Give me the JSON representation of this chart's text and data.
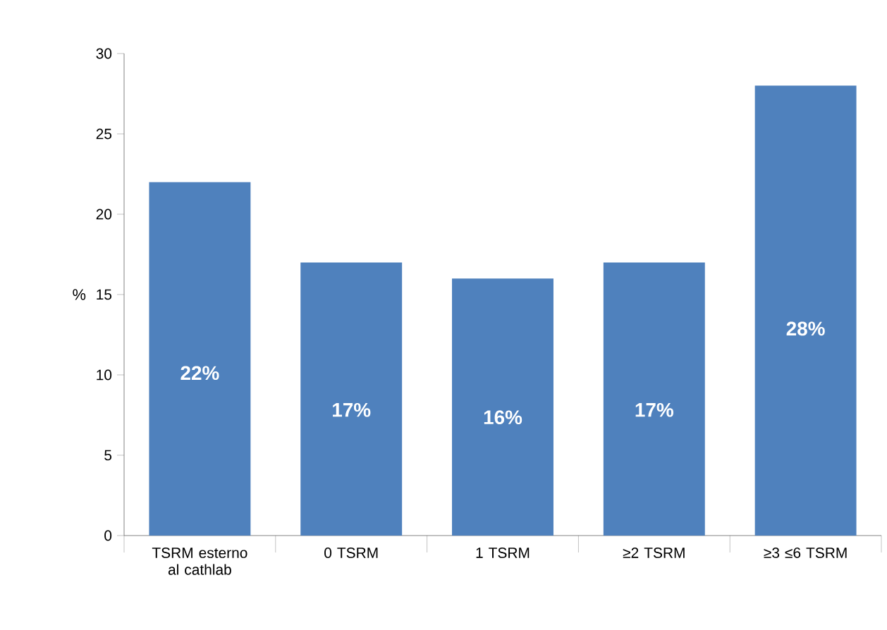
{
  "chart_data": {
    "type": "bar",
    "ylabel": "%",
    "categories": [
      "TSRM esterno al cathlab",
      "0 TSRM",
      "1 TSRM",
      "≥2 TSRM",
      "≥3 ≤6 TSRM"
    ],
    "values": [
      22,
      17,
      16,
      17,
      28
    ],
    "value_labels": [
      "22%",
      "17%",
      "16%",
      "17%",
      "28%"
    ],
    "color": "#4f81bd",
    "ylim": [
      0,
      30
    ],
    "yticks": [
      0,
      5,
      10,
      15,
      20,
      25,
      30
    ]
  }
}
